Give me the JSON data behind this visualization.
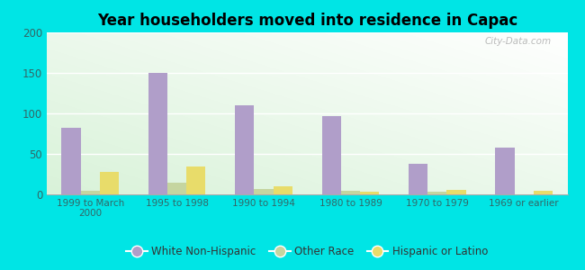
{
  "title": "Year householders moved into residence in Capac",
  "categories": [
    "1999 to March\n2000",
    "1995 to 1998",
    "1990 to 1994",
    "1980 to 1989",
    "1970 to 1979",
    "1969 or earlier"
  ],
  "white_non_hispanic": [
    82,
    150,
    110,
    97,
    38,
    58
  ],
  "other_race": [
    5,
    15,
    7,
    4,
    3,
    0
  ],
  "hispanic_or_latino": [
    28,
    34,
    10,
    3,
    6,
    4
  ],
  "white_color": "#b09ec9",
  "other_color": "#c5d5a0",
  "hispanic_color": "#e8dc6a",
  "bg_outer": "#00e5e5",
  "ylim": [
    0,
    200
  ],
  "yticks": [
    0,
    50,
    100,
    150,
    200
  ],
  "bar_width": 0.22,
  "legend_labels": [
    "White Non-Hispanic",
    "Other Race",
    "Hispanic or Latino"
  ],
  "watermark": "City-Data.com"
}
